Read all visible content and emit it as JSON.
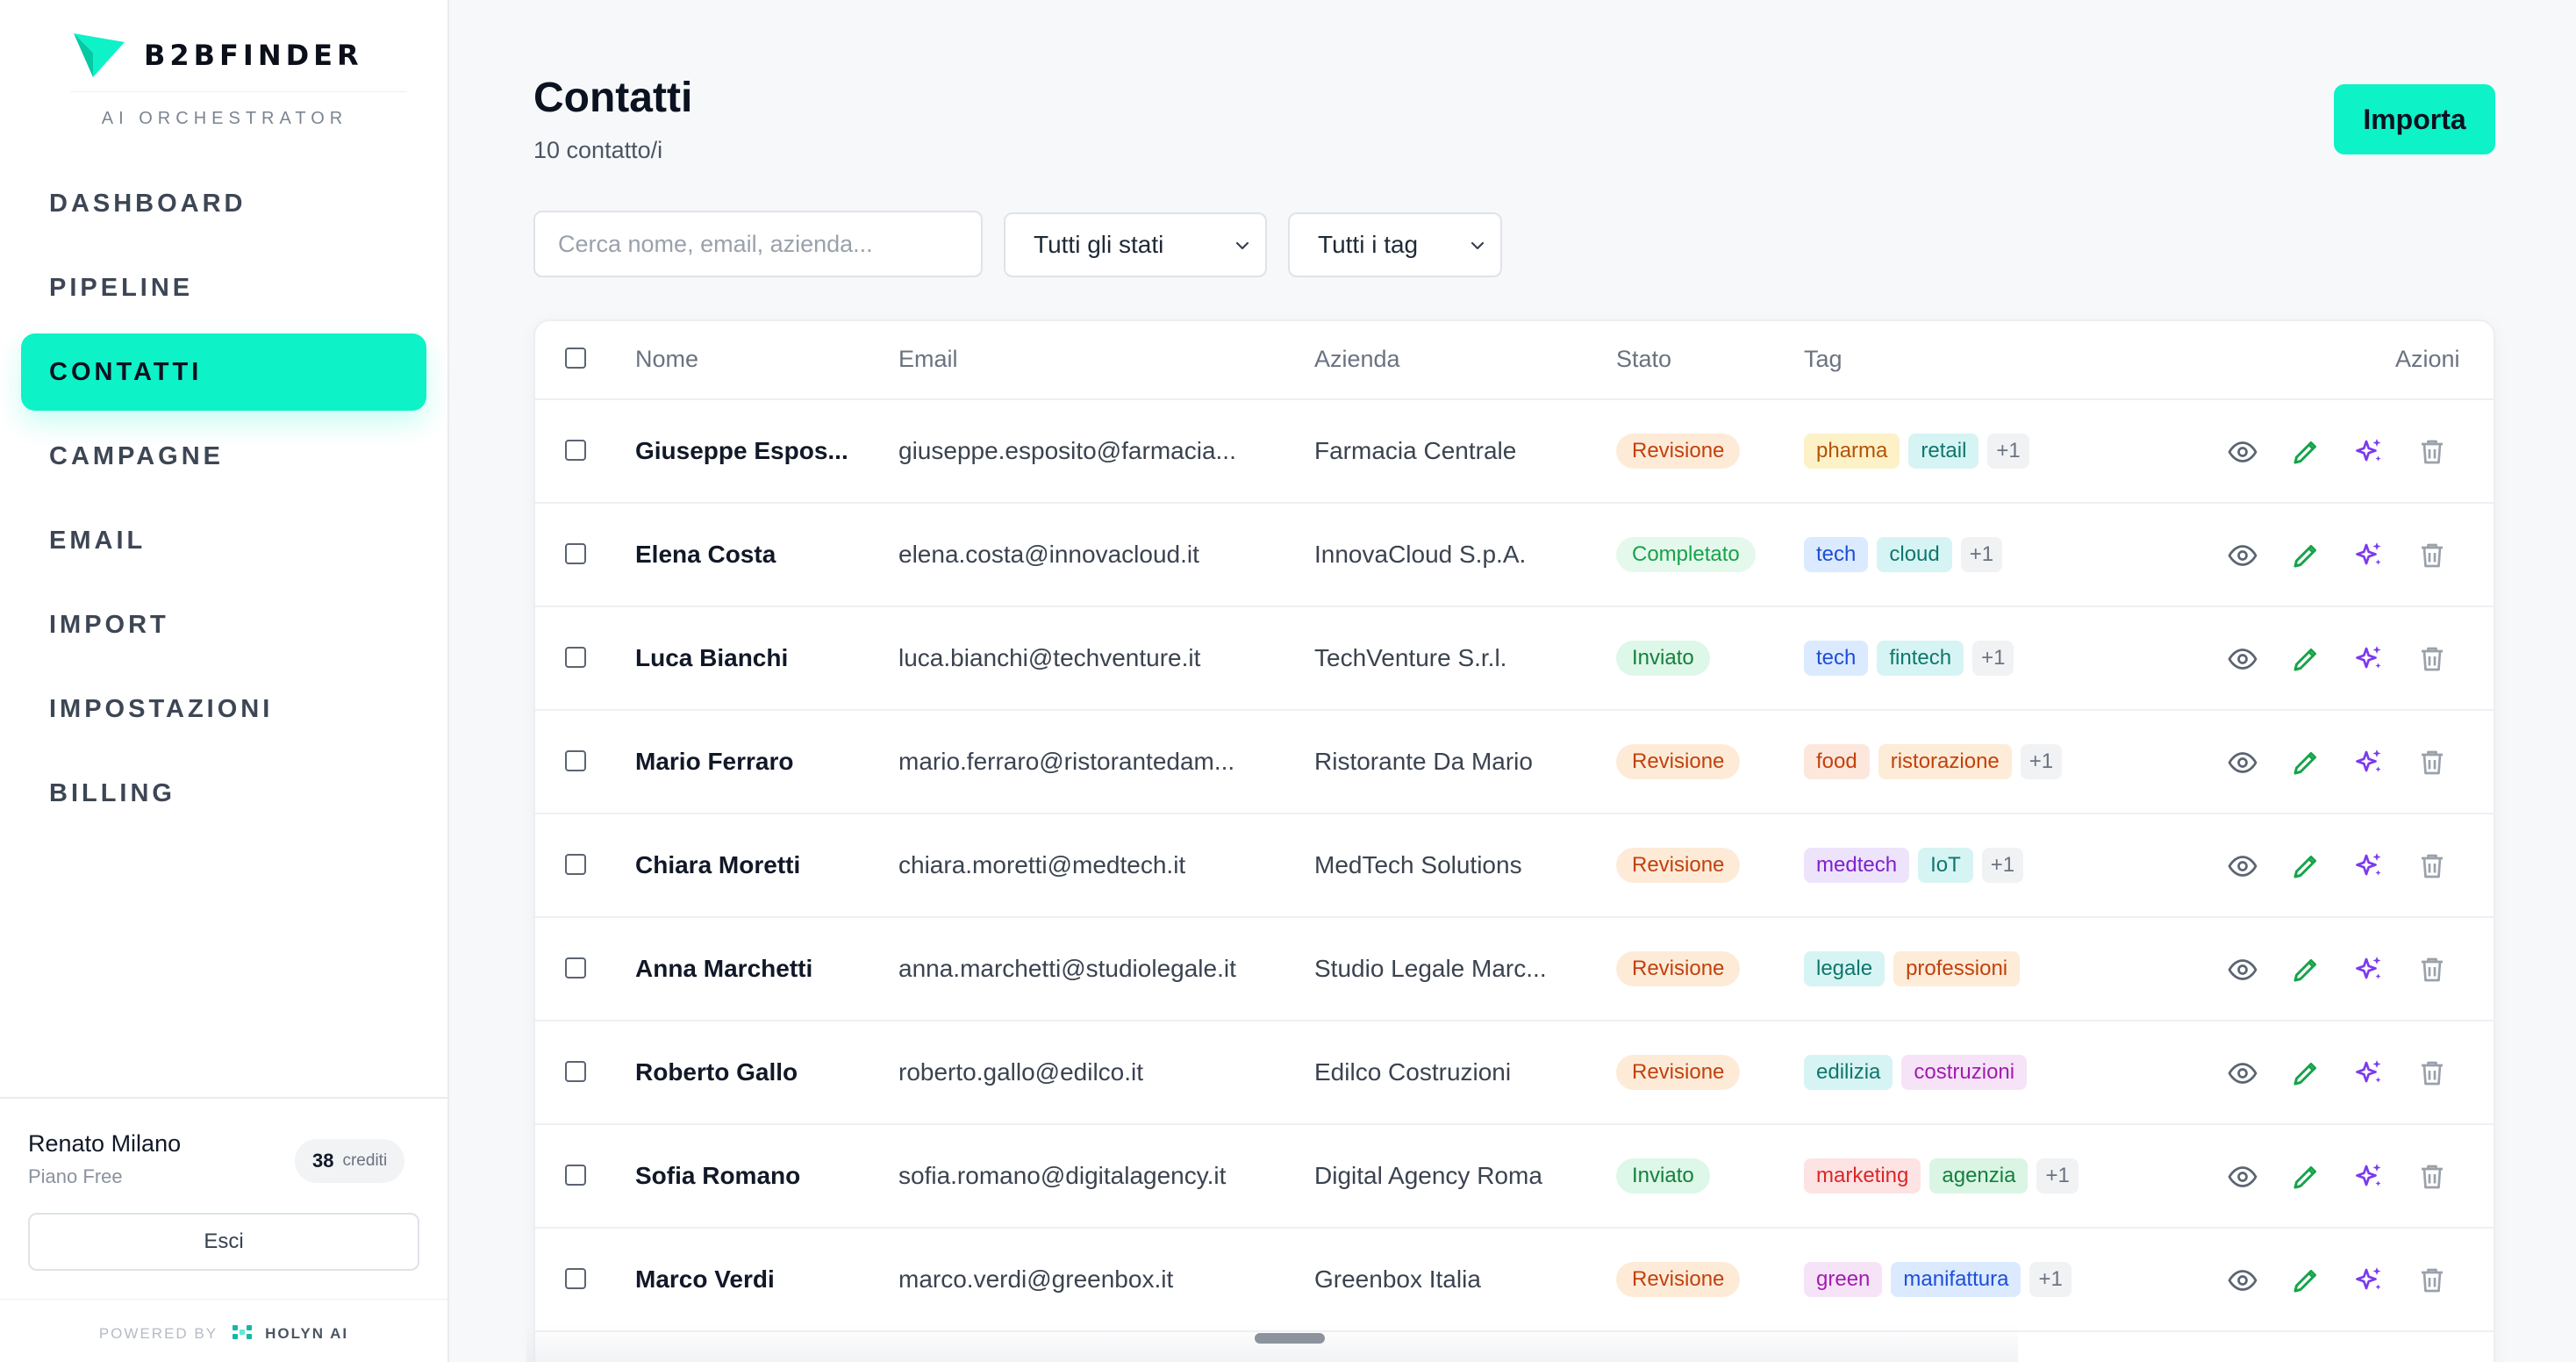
{
  "app": {
    "brand": "B2BFINDER",
    "subtitle": "AI ORCHESTRATOR",
    "accent_color": "#0ef2c8"
  },
  "sidebar": {
    "items": [
      {
        "label": "DASHBOARD",
        "active": false
      },
      {
        "label": "PIPELINE",
        "active": false
      },
      {
        "label": "CONTATTI",
        "active": true
      },
      {
        "label": "CAMPAGNE",
        "active": false
      },
      {
        "label": "EMAIL",
        "active": false
      },
      {
        "label": "IMPORT",
        "active": false
      },
      {
        "label": "IMPOSTAZIONI",
        "active": false
      },
      {
        "label": "BILLING",
        "active": false
      }
    ],
    "user": {
      "name": "Renato Milano",
      "plan": "Piano Free",
      "credits_value": "38",
      "credits_label": "crediti"
    },
    "logout_label": "Esci",
    "powered_by": "POWERED BY",
    "powered_brand": "HOLYN AI"
  },
  "main": {
    "title": "Contatti",
    "count": "10 contatto/i",
    "import_label": "Importa",
    "search_placeholder": "Cerca nome, email, azienda...",
    "status_filter": "Tutti gli stati",
    "tag_filter": "Tutti i tag"
  },
  "table": {
    "headers": {
      "name": "Nome",
      "email": "Email",
      "company": "Azienda",
      "status": "Stato",
      "tags": "Tag",
      "actions": "Azioni"
    },
    "rows": [
      {
        "name": "Giuseppe Espos...",
        "email": "giuseppe.esposito@farmacia...",
        "company": "Farmacia Centrale",
        "status": "Revisione",
        "status_kind": "rev",
        "tags": [
          "pharma",
          "retail"
        ],
        "more": "+1"
      },
      {
        "name": "Elena Costa",
        "email": "elena.costa@innovacloud.it",
        "company": "InnovaCloud S.p.A.",
        "status": "Completato",
        "status_kind": "done",
        "tags": [
          "tech",
          "cloud"
        ],
        "more": "+1"
      },
      {
        "name": "Luca Bianchi",
        "email": "luca.bianchi@techventure.it",
        "company": "TechVenture S.r.l.",
        "status": "Inviato",
        "status_kind": "sent",
        "tags": [
          "tech",
          "fintech"
        ],
        "more": "+1"
      },
      {
        "name": "Mario Ferraro",
        "email": "mario.ferraro@ristorantedam...",
        "company": "Ristorante Da Mario",
        "status": "Revisione",
        "status_kind": "rev",
        "tags": [
          "food",
          "ristorazione"
        ],
        "more": "+1"
      },
      {
        "name": "Chiara Moretti",
        "email": "chiara.moretti@medtech.it",
        "company": "MedTech Solutions",
        "status": "Revisione",
        "status_kind": "rev",
        "tags": [
          "medtech",
          "IoT"
        ],
        "more": "+1"
      },
      {
        "name": "Anna Marchetti",
        "email": "anna.marchetti@studiolegale.it",
        "company": "Studio Legale Marc...",
        "status": "Revisione",
        "status_kind": "rev",
        "tags": [
          "legale",
          "professioni"
        ],
        "more": ""
      },
      {
        "name": "Roberto Gallo",
        "email": "roberto.gallo@edilco.it",
        "company": "Edilco Costruzioni",
        "status": "Revisione",
        "status_kind": "rev",
        "tags": [
          "edilizia",
          "costruzioni"
        ],
        "more": ""
      },
      {
        "name": "Sofia Romano",
        "email": "sofia.romano@digitalagency.it",
        "company": "Digital Agency Roma",
        "status": "Inviato",
        "status_kind": "sent",
        "tags": [
          "marketing",
          "agenzia"
        ],
        "more": "+1"
      },
      {
        "name": "Marco Verdi",
        "email": "marco.verdi@greenbox.it",
        "company": "Greenbox Italia",
        "status": "Revisione",
        "status_kind": "rev",
        "tags": [
          "green",
          "manifattura"
        ],
        "more": "+1"
      }
    ],
    "action_icons": [
      "eye-icon",
      "pencil-icon",
      "sparkles-icon",
      "trash-icon"
    ]
  },
  "tag_colors": {
    "pharma": [
      "#fdf1c7",
      "#b45309"
    ],
    "retail": [
      "#d6f4f3",
      "#0f766e"
    ],
    "tech": [
      "#dbeafe",
      "#1d4ed8"
    ],
    "cloud": [
      "#d6f4f3",
      "#0f766e"
    ],
    "fintech": [
      "#d6f4f3",
      "#0f766e"
    ],
    "food": [
      "#fde7dd",
      "#c2410c"
    ],
    "ristorazione": [
      "#fdecd8",
      "#c2410c"
    ],
    "medtech": [
      "#ede4fb",
      "#7e22ce"
    ],
    "IoT": [
      "#d6f4f3",
      "#0f766e"
    ],
    "legale": [
      "#d6f4f3",
      "#0f766e"
    ],
    "professioni": [
      "#fdecd8",
      "#c2410c"
    ],
    "edilizia": [
      "#d6f4f3",
      "#0f766e"
    ],
    "costruzioni": [
      "#f6e3f7",
      "#a21caf"
    ],
    "marketing": [
      "#fde3e3",
      "#dc2626"
    ],
    "agenzia": [
      "#daf5e4",
      "#15803d"
    ],
    "green": [
      "#f6e3f7",
      "#a21caf"
    ],
    "manifattura": [
      "#dbeafe",
      "#1d4ed8"
    ]
  }
}
